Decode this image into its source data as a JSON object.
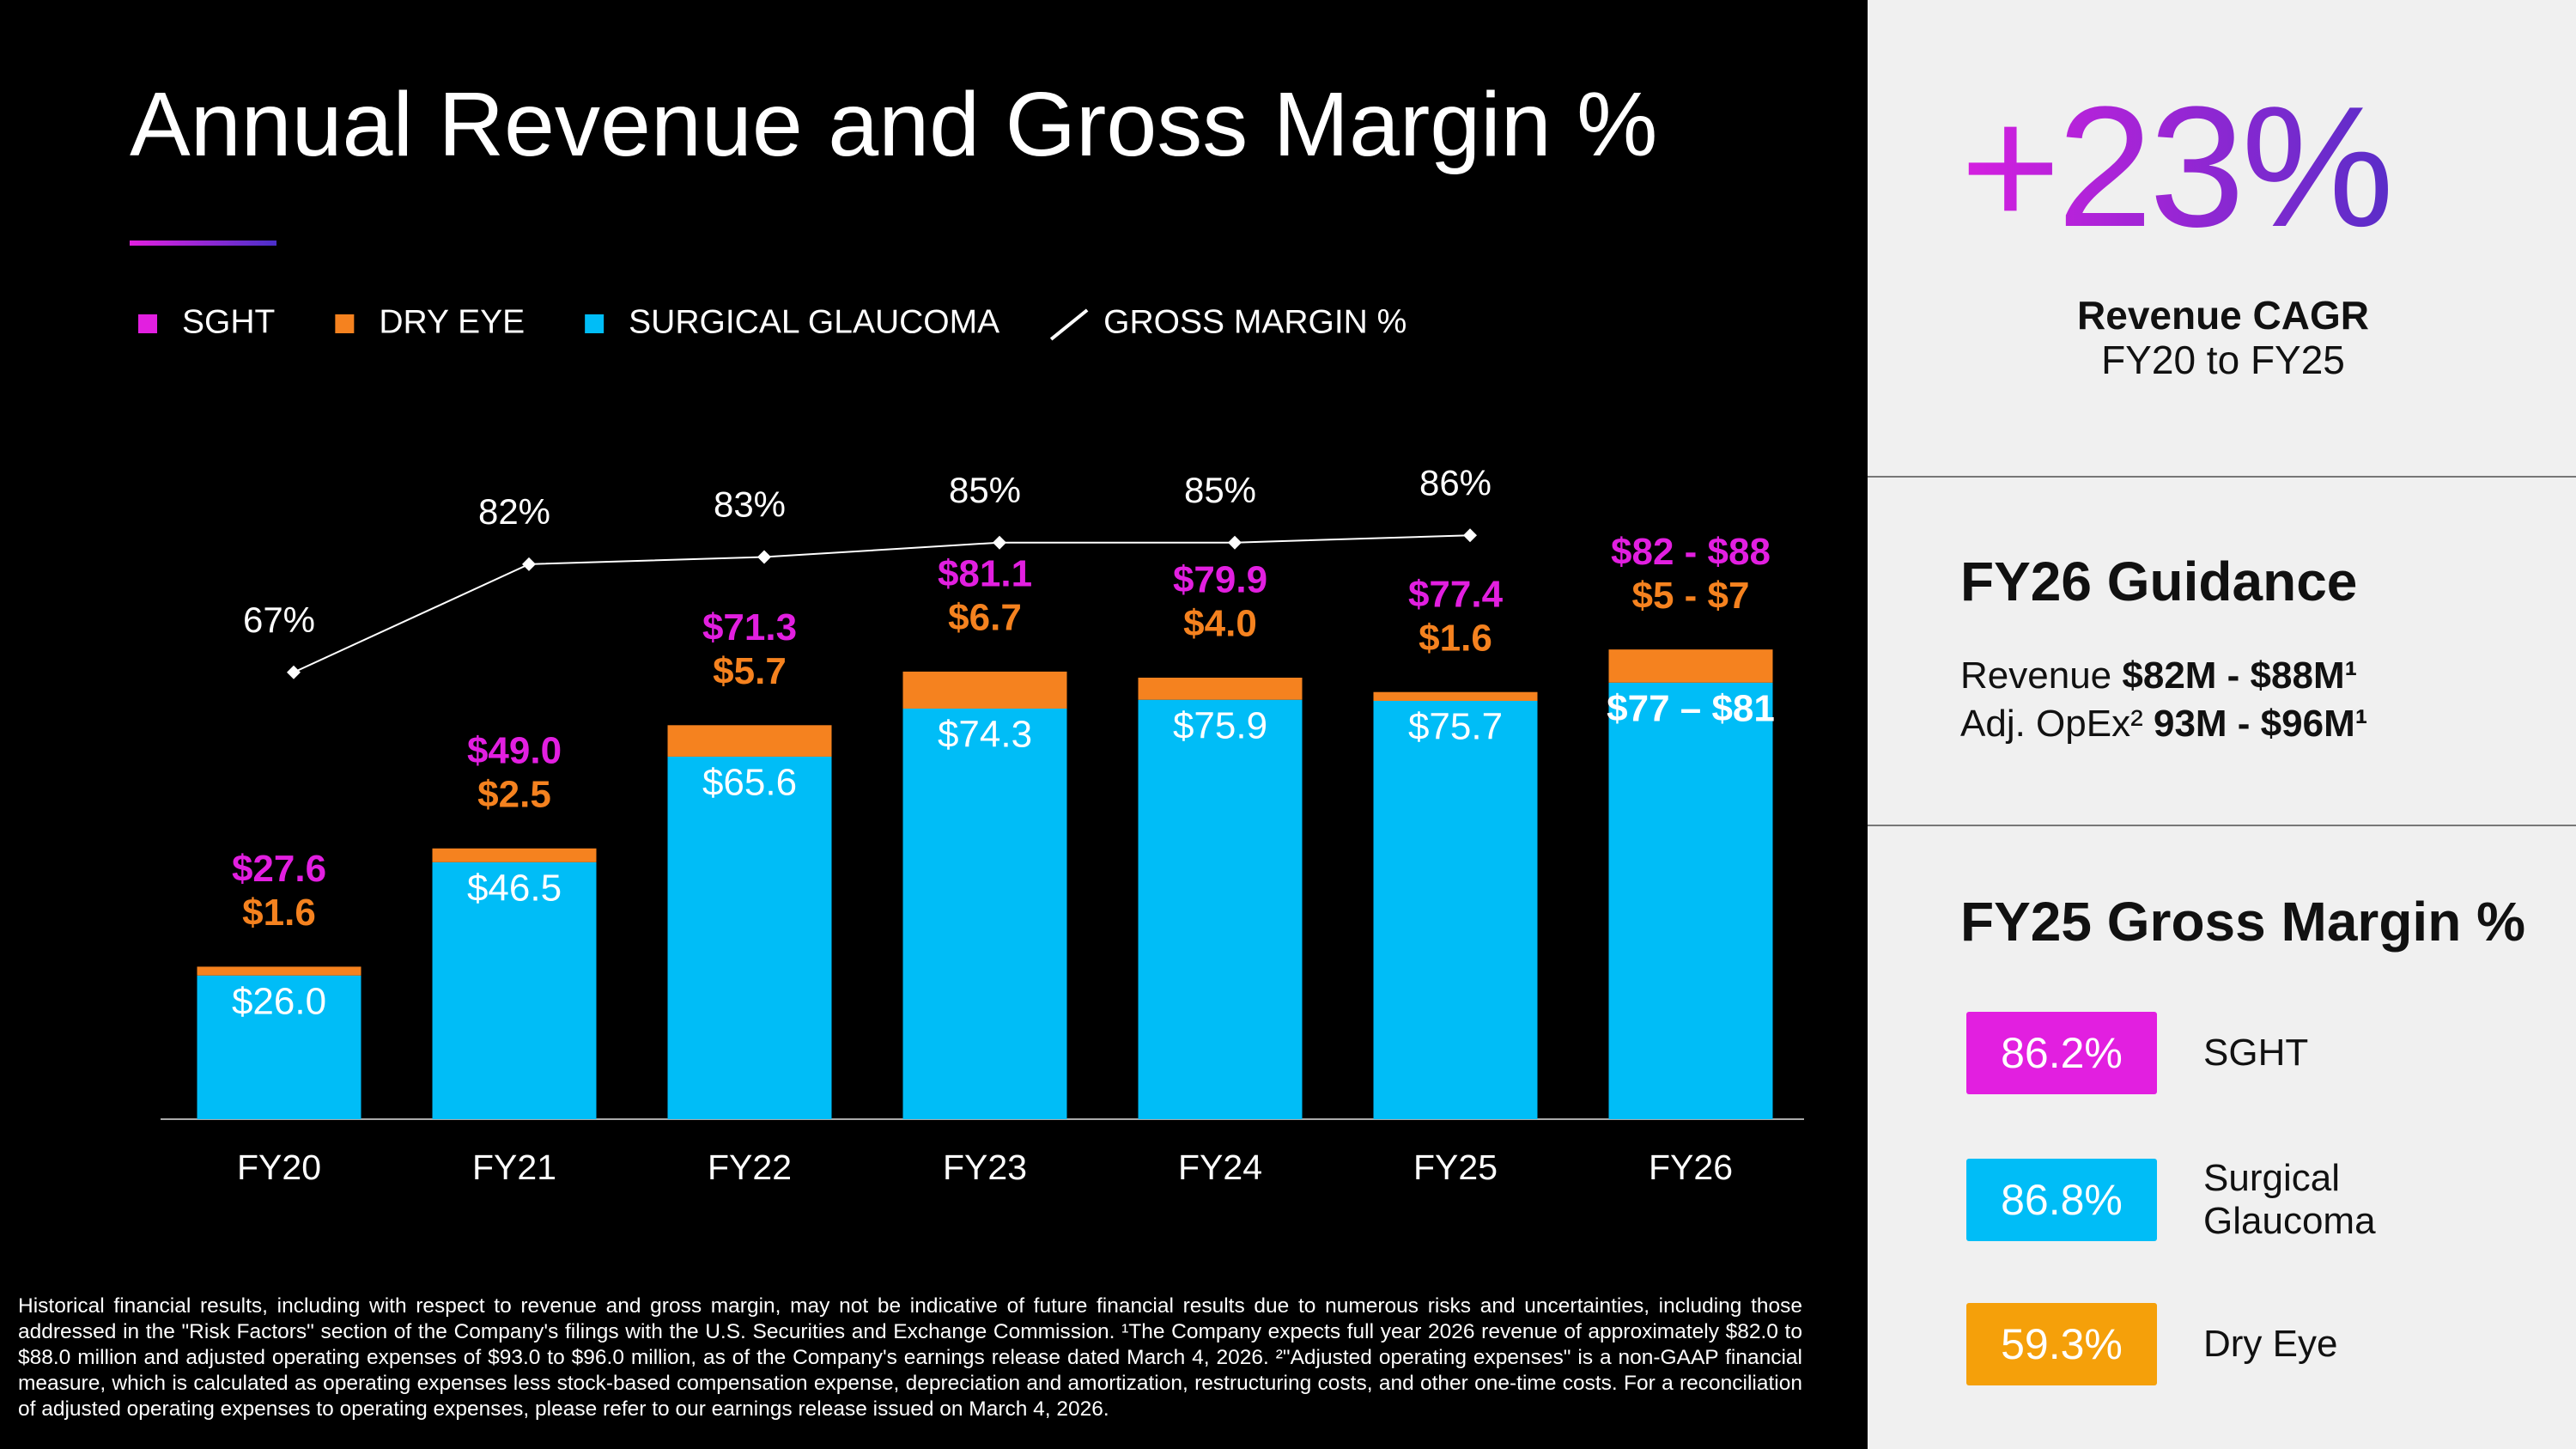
{
  "chart_data": {
    "type": "bar",
    "title": "Annual Revenue and Gross Margin %",
    "categories": [
      "FY20",
      "FY21",
      "FY22",
      "FY23",
      "FY24",
      "FY25",
      "FY26"
    ],
    "ylim": [
      0,
      120
    ],
    "y2lim": [
      5,
      97
    ],
    "series": [
      {
        "name": "SGHT",
        "kind": "total",
        "color": "#e21fe0",
        "values": [
          27.6,
          49.0,
          71.3,
          81.1,
          79.9,
          77.4,
          85
        ],
        "value_labels": [
          "$27.6",
          "$49.0",
          "$71.3",
          "$81.1",
          "$79.9",
          "$77.4",
          "$82 - $88"
        ]
      },
      {
        "name": "DRY EYE",
        "kind": "bar",
        "color": "#f5821f",
        "values": [
          1.6,
          2.5,
          5.7,
          6.7,
          4.0,
          1.6,
          6
        ],
        "value_labels": [
          "$1.6",
          "$2.5",
          "$5.7",
          "$6.7",
          "$4.0",
          "$1.6",
          "$5 - $7"
        ]
      },
      {
        "name": "SURGICAL GLAUCOMA",
        "kind": "bar",
        "color": "#00bdf7",
        "values": [
          26.0,
          46.5,
          65.6,
          74.3,
          75.9,
          75.7,
          79
        ],
        "value_labels": [
          "$26.0",
          "$46.5",
          "$65.6",
          "$74.3",
          "$75.9",
          "$75.7",
          "$77 – $81"
        ]
      },
      {
        "name": "GROSS MARGIN %",
        "kind": "line",
        "axis": "y2",
        "color": "#ffffff",
        "values": [
          67,
          82,
          83,
          85,
          85,
          86,
          null
        ],
        "value_labels": [
          "67%",
          "82%",
          "83%",
          "85%",
          "85%",
          "86%",
          null
        ]
      }
    ]
  },
  "footnote": "Historical financial results, including with respect to revenue and gross margin, may not be indicative of future financial results due to numerous risks and uncertainties, including those addressed in the \"Risk Factors\" section of the Company's filings with the U.S. Securities and Exchange Commission. ¹The Company expects full year 2026 revenue of approximately $82.0 to $88.0 million and adjusted operating expenses of $93.0 to $96.0 million, as of the Company's earnings release dated March 4, 2026. ²\"Adjusted operating expenses\" is a non-GAAP financial measure, which is calculated as operating expenses less stock-based compensation expense, depreciation and amortization, restructuring costs, and other one-time costs. For a reconciliation of adjusted operating expenses to operating expenses, please refer to our earnings release issued on March 4, 2026.",
  "cagr": {
    "value": "+23%",
    "label": "Revenue CAGR",
    "period": "FY20 to FY25"
  },
  "guidance": {
    "title": "FY26 Guidance",
    "lines": [
      {
        "label": "Revenue",
        "value": "$82M - $88M¹"
      },
      {
        "label": "Adj. OpEx²",
        "value": "93M - $96M¹"
      }
    ]
  },
  "margins": {
    "title": "FY25 Gross Margin %",
    "items": [
      {
        "value": "86.2%",
        "label": "SGHT",
        "color": "#e21fe0"
      },
      {
        "value": "86.8%",
        "label": "Surgical Glaucoma",
        "color": "#00bdf7"
      },
      {
        "value": "59.3%",
        "label": "Dry Eye",
        "color": "#f5a00a"
      }
    ]
  }
}
